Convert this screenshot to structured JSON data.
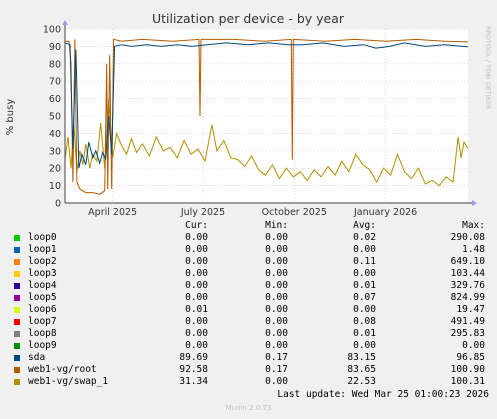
{
  "chart_data": {
    "type": "line",
    "title": "Utilization per device - by year",
    "ylabel": "% busy",
    "xlabel": "",
    "ylim": [
      0,
      100
    ],
    "yticks": [
      0,
      10,
      20,
      30,
      40,
      50,
      60,
      70,
      80,
      90,
      100
    ],
    "x_range": [
      "2025-02-12",
      "2026-03-25"
    ],
    "xticks": [
      {
        "label": "April 2025",
        "date": "2025-04-01"
      },
      {
        "label": "July 2025",
        "date": "2025-07-01"
      },
      {
        "label": "October 2025",
        "date": "2025-10-01"
      },
      {
        "label": "January 2026",
        "date": "2026-01-01"
      }
    ],
    "grid": true,
    "watermark": "RRDTOOL / TOBI OETIKER",
    "series": [
      {
        "name": "loop0",
        "color": "#00cc00",
        "cur": "0.00",
        "min": "0.00",
        "avg": "0.02",
        "max": "290.08"
      },
      {
        "name": "loop1",
        "color": "#0066b3",
        "cur": "0.00",
        "min": "0.00",
        "avg": "0.00",
        "max": "1.48"
      },
      {
        "name": "loop2",
        "color": "#ff8000",
        "cur": "0.00",
        "min": "0.00",
        "avg": "0.11",
        "max": "649.10"
      },
      {
        "name": "loop3",
        "color": "#ffcc00",
        "cur": "0.00",
        "min": "0.00",
        "avg": "0.00",
        "max": "103.44"
      },
      {
        "name": "loop4",
        "color": "#330099",
        "cur": "0.00",
        "min": "0.00",
        "avg": "0.01",
        "max": "329.76"
      },
      {
        "name": "loop5",
        "color": "#990099",
        "cur": "0.00",
        "min": "0.00",
        "avg": "0.07",
        "max": "824.99"
      },
      {
        "name": "loop6",
        "color": "#ccff00",
        "cur": "0.01",
        "min": "0.00",
        "avg": "0.00",
        "max": "19.47"
      },
      {
        "name": "loop7",
        "color": "#ff0000",
        "cur": "0.00",
        "min": "0.00",
        "avg": "0.08",
        "max": "491.49"
      },
      {
        "name": "loop8",
        "color": "#808080",
        "cur": "0.00",
        "min": "0.00",
        "avg": "0.01",
        "max": "295.83"
      },
      {
        "name": "loop9",
        "color": "#008f00",
        "cur": "0.00",
        "min": "0.00",
        "avg": "0.00",
        "max": "0.00"
      },
      {
        "name": "sda",
        "color": "#00487d",
        "cur": "89.69",
        "min": "0.17",
        "avg": "83.15",
        "max": "96.85"
      },
      {
        "name": "web1-vg/root",
        "color": "#b35a00",
        "cur": "92.58",
        "min": "0.17",
        "avg": "83.65",
        "max": "100.90"
      },
      {
        "name": "web1-vg/swap_1",
        "color": "#b38f00",
        "cur": "31.34",
        "min": "0.00",
        "avg": "22.53",
        "max": "100.31"
      }
    ],
    "line_points": {
      "sda": [
        [
          "2025-02-12",
          92
        ],
        [
          "2025-02-17",
          91
        ],
        [
          "2025-02-20",
          31
        ],
        [
          "2025-02-23",
          88
        ],
        [
          "2025-02-26",
          20
        ],
        [
          "2025-03-01",
          28
        ],
        [
          "2025-03-05",
          22
        ],
        [
          "2025-03-08",
          35
        ],
        [
          "2025-03-12",
          26
        ],
        [
          "2025-03-15",
          30
        ],
        [
          "2025-03-19",
          23
        ],
        [
          "2025-03-22",
          29
        ],
        [
          "2025-03-25",
          25
        ],
        [
          "2025-03-28",
          50
        ],
        [
          "2025-03-31",
          28
        ],
        [
          "2025-04-03",
          90
        ],
        [
          "2025-04-10",
          91
        ],
        [
          "2025-04-20",
          90
        ],
        [
          "2025-05-05",
          91
        ],
        [
          "2025-05-20",
          90
        ],
        [
          "2025-06-05",
          91
        ],
        [
          "2025-06-20",
          90
        ],
        [
          "2025-07-05",
          91
        ],
        [
          "2025-07-25",
          92
        ],
        [
          "2025-08-15",
          91
        ],
        [
          "2025-09-05",
          92
        ],
        [
          "2025-09-25",
          91
        ],
        [
          "2025-10-10",
          91
        ],
        [
          "2025-10-30",
          92
        ],
        [
          "2025-11-20",
          90
        ],
        [
          "2025-12-10",
          91
        ],
        [
          "2025-12-22",
          89
        ],
        [
          "2026-01-05",
          90
        ],
        [
          "2026-01-20",
          92
        ],
        [
          "2026-02-10",
          90
        ],
        [
          "2026-03-01",
          91
        ],
        [
          "2026-03-25",
          89.69
        ]
      ],
      "web1-vg/root": [
        [
          "2025-02-12",
          93
        ],
        [
          "2025-02-16",
          93
        ],
        [
          "2025-02-18",
          80
        ],
        [
          "2025-02-20",
          12
        ],
        [
          "2025-02-22",
          94
        ],
        [
          "2025-02-24",
          12
        ],
        [
          "2025-02-27",
          8
        ],
        [
          "2025-03-05",
          6
        ],
        [
          "2025-03-12",
          6
        ],
        [
          "2025-03-19",
          5
        ],
        [
          "2025-03-24",
          7
        ],
        [
          "2025-03-26",
          80
        ],
        [
          "2025-03-27",
          8
        ],
        [
          "2025-03-29",
          85
        ],
        [
          "2025-03-31",
          8
        ],
        [
          "2025-04-02",
          94
        ],
        [
          "2025-04-10",
          93
        ],
        [
          "2025-05-01",
          94
        ],
        [
          "2025-06-01",
          93
        ],
        [
          "2025-06-27",
          94
        ],
        [
          "2025-06-28",
          50
        ],
        [
          "2025-06-29",
          94
        ],
        [
          "2025-08-01",
          94
        ],
        [
          "2025-09-01",
          93
        ],
        [
          "2025-09-28",
          94
        ],
        [
          "2025-09-29",
          25
        ],
        [
          "2025-09-30",
          94
        ],
        [
          "2025-11-01",
          93
        ],
        [
          "2025-12-01",
          94
        ],
        [
          "2026-01-01",
          93
        ],
        [
          "2026-02-01",
          94
        ],
        [
          "2026-03-01",
          93
        ],
        [
          "2026-03-25",
          92.58
        ]
      ],
      "web1-vg/swap_1": [
        [
          "2025-02-12",
          25
        ],
        [
          "2025-02-15",
          38
        ],
        [
          "2025-02-18",
          20
        ],
        [
          "2025-02-21",
          45
        ],
        [
          "2025-02-24",
          18
        ],
        [
          "2025-02-27",
          30
        ],
        [
          "2025-03-02",
          22
        ],
        [
          "2025-03-05",
          34
        ],
        [
          "2025-03-09",
          20
        ],
        [
          "2025-03-12",
          28
        ],
        [
          "2025-03-16",
          24
        ],
        [
          "2025-03-20",
          46
        ],
        [
          "2025-03-24",
          20
        ],
        [
          "2025-03-28",
          60
        ],
        [
          "2025-04-01",
          26
        ],
        [
          "2025-04-05",
          40
        ],
        [
          "2025-04-10",
          33
        ],
        [
          "2025-04-15",
          28
        ],
        [
          "2025-04-20",
          37
        ],
        [
          "2025-04-25",
          29
        ],
        [
          "2025-05-01",
          34
        ],
        [
          "2025-05-08",
          27
        ],
        [
          "2025-05-15",
          38
        ],
        [
          "2025-05-22",
          30
        ],
        [
          "2025-05-29",
          32
        ],
        [
          "2025-06-05",
          26
        ],
        [
          "2025-06-12",
          36
        ],
        [
          "2025-06-19",
          28
        ],
        [
          "2025-06-26",
          31
        ],
        [
          "2025-07-03",
          24
        ],
        [
          "2025-07-10",
          45
        ],
        [
          "2025-07-15",
          30
        ],
        [
          "2025-07-22",
          36
        ],
        [
          "2025-07-29",
          26
        ],
        [
          "2025-08-05",
          25
        ],
        [
          "2025-08-12",
          21
        ],
        [
          "2025-08-19",
          27
        ],
        [
          "2025-08-26",
          19
        ],
        [
          "2025-09-02",
          16
        ],
        [
          "2025-09-09",
          22
        ],
        [
          "2025-09-16",
          14
        ],
        [
          "2025-09-23",
          20
        ],
        [
          "2025-09-30",
          15
        ],
        [
          "2025-10-07",
          18
        ],
        [
          "2025-10-14",
          13
        ],
        [
          "2025-10-21",
          19
        ],
        [
          "2025-10-28",
          15
        ],
        [
          "2025-11-04",
          21
        ],
        [
          "2025-11-11",
          16
        ],
        [
          "2025-11-18",
          24
        ],
        [
          "2025-11-25",
          18
        ],
        [
          "2025-12-02",
          28
        ],
        [
          "2025-12-09",
          22
        ],
        [
          "2025-12-16",
          19
        ],
        [
          "2025-12-23",
          12
        ],
        [
          "2025-12-30",
          20
        ],
        [
          "2026-01-06",
          16
        ],
        [
          "2026-01-13",
          28
        ],
        [
          "2026-01-20",
          18
        ],
        [
          "2026-01-27",
          14
        ],
        [
          "2026-02-03",
          20
        ],
        [
          "2026-02-10",
          11
        ],
        [
          "2026-02-17",
          13
        ],
        [
          "2026-02-24",
          10
        ],
        [
          "2026-03-03",
          15
        ],
        [
          "2026-03-10",
          12
        ],
        [
          "2026-03-15",
          38
        ],
        [
          "2026-03-18",
          26
        ],
        [
          "2026-03-21",
          35
        ],
        [
          "2026-03-25",
          31.34
        ]
      ]
    }
  },
  "legend_headers": {
    "cur": "Cur:",
    "min": "Min:",
    "avg": "Avg:",
    "max": "Max:"
  },
  "last_update": "Last update: Wed Mar 25 01:00:23 2026",
  "footer": "Munin 2.0.73"
}
